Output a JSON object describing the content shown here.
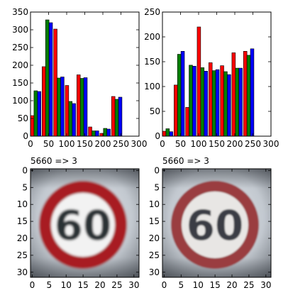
{
  "chart_data": [
    {
      "type": "bar",
      "title": "",
      "xlabel": "",
      "ylabel": "",
      "xlim": [
        0,
        300
      ],
      "ylim": [
        0,
        350
      ],
      "xticks": [
        0,
        50,
        100,
        150,
        200,
        250,
        300
      ],
      "yticks": [
        0,
        50,
        100,
        150,
        200,
        250,
        300,
        350
      ],
      "bin_starts": [
        0,
        32,
        64,
        96,
        128,
        160,
        192,
        224
      ],
      "bin_width": 32,
      "series": [
        {
          "color": "#ff0000",
          "values": [
            58,
            196,
            302,
            143,
            173,
            26,
            8,
            112
          ]
        },
        {
          "color": "#007f00",
          "values": [
            128,
            328,
            164,
            98,
            163,
            15,
            22,
            104
          ]
        },
        {
          "color": "#0000ff",
          "values": [
            126,
            320,
            167,
            92,
            165,
            15,
            20,
            110
          ]
        }
      ]
    },
    {
      "type": "bar",
      "title": "",
      "xlabel": "",
      "ylabel": "",
      "xlim": [
        0,
        300
      ],
      "ylim": [
        0,
        250
      ],
      "xticks": [
        0,
        50,
        100,
        150,
        200,
        250,
        300
      ],
      "yticks": [
        0,
        50,
        100,
        150,
        200,
        250
      ],
      "bin_starts": [
        0,
        32,
        64,
        96,
        128,
        160,
        192,
        224
      ],
      "bin_width": 32,
      "series": [
        {
          "color": "#ff0000",
          "values": [
            10,
            103,
            58,
            220,
            148,
            142,
            168,
            171
          ]
        },
        {
          "color": "#007f00",
          "values": [
            15,
            165,
            143,
            138,
            132,
            130,
            137,
            163
          ]
        },
        {
          "color": "#0000ff",
          "values": [
            9,
            171,
            141,
            131,
            134,
            124,
            137,
            176
          ]
        }
      ]
    },
    {
      "type": "image",
      "title": "5660 => 3",
      "xlim": [
        0,
        31
      ],
      "ylim": [
        31,
        0
      ],
      "xticks": [
        0,
        5,
        10,
        15,
        20,
        25,
        30
      ],
      "yticks": [
        0,
        5,
        10,
        15,
        20,
        25,
        30
      ],
      "sign_text": "60",
      "blur": 1.6
    },
    {
      "type": "image",
      "title": "5660 => 3",
      "xlim": [
        0,
        31
      ],
      "ylim": [
        31,
        0
      ],
      "xticks": [
        0,
        5,
        10,
        15,
        20,
        25,
        30
      ],
      "yticks": [
        0,
        5,
        10,
        15,
        20,
        25,
        30
      ],
      "sign_text": "60",
      "blur": 1.0
    }
  ]
}
